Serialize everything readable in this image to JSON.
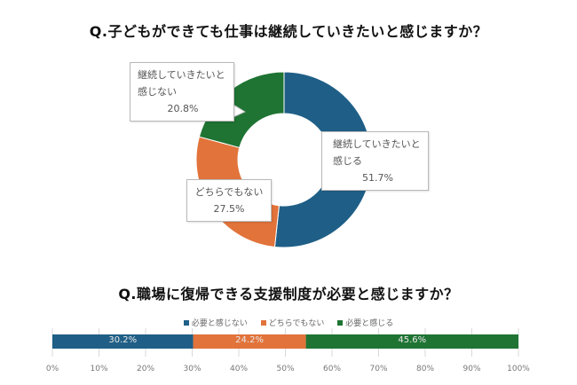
{
  "colors": {
    "blue": "#1f5f87",
    "orange": "#e2733a",
    "green": "#1f7433",
    "grid": "#d9d9d9"
  },
  "chart_data": [
    {
      "type": "pie",
      "title": "Q.子どもができても仕事は継続していきたいと感じますか？",
      "slices": [
        {
          "label": "継続していきたいと感じる",
          "value": 51.7,
          "pct_label": "51.7%",
          "color": "#1f5f87"
        },
        {
          "label": "どちらでもない",
          "value": 27.5,
          "pct_label": "27.5%",
          "color": "#e2733a"
        },
        {
          "label": "継続していきたいと感じない",
          "value": 20.8,
          "pct_label": "20.8%",
          "color": "#1f7433"
        }
      ],
      "callouts": {
        "a": {
          "line1": "継続していきたいと",
          "line2": "感じる"
        },
        "b": {
          "line1": "継続していきたいと",
          "line2": "感じない"
        },
        "c": {
          "line1": "どちらでもない"
        }
      }
    },
    {
      "type": "bar",
      "orientation": "horizontal-stacked-100",
      "title": "Q.職場に復帰できる支援制度が必要と感じますか？",
      "series": [
        {
          "name": "必要と感じない",
          "value": 30.2,
          "label": "30.2%",
          "color": "#1f5f87"
        },
        {
          "name": "どちらでもない",
          "value": 24.2,
          "label": "24.2%",
          "color": "#e2733a"
        },
        {
          "name": "必要と感じる",
          "value": 45.6,
          "label": "45.6%",
          "color": "#1f7433"
        }
      ],
      "xlim": [
        0,
        100
      ],
      "ticks": [
        "0%",
        "10%",
        "20%",
        "30%",
        "40%",
        "50%",
        "60%",
        "70%",
        "80%",
        "90%",
        "100%"
      ],
      "grid": true,
      "legend": "top"
    }
  ]
}
